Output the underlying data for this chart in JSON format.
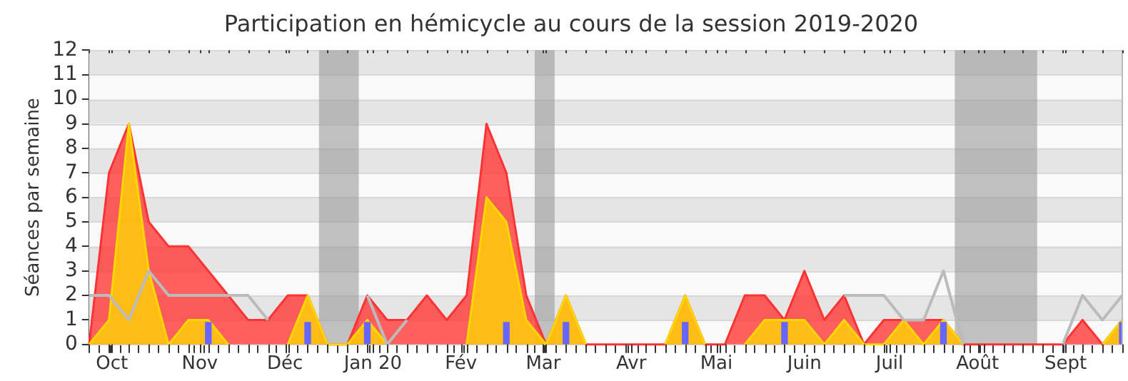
{
  "chart_data": {
    "type": "area",
    "title": "Participation en hémicycle au cours de la session 2019-2020",
    "ylabel": "Séances par semaine",
    "x": [
      "2019-09-23",
      "2019-09-30",
      "2019-10-07",
      "2019-10-14",
      "2019-10-21",
      "2019-10-28",
      "2019-11-04",
      "2019-11-11",
      "2019-11-18",
      "2019-11-25",
      "2019-12-02",
      "2019-12-09",
      "2019-12-16",
      "2019-12-23",
      "2019-12-30",
      "2020-01-06",
      "2020-01-13",
      "2020-01-20",
      "2020-01-27",
      "2020-02-03",
      "2020-02-10",
      "2020-02-17",
      "2020-02-24",
      "2020-03-02",
      "2020-03-09",
      "2020-03-16",
      "2020-03-23",
      "2020-03-30",
      "2020-04-06",
      "2020-04-13",
      "2020-04-20",
      "2020-04-27",
      "2020-05-04",
      "2020-05-11",
      "2020-05-18",
      "2020-05-25",
      "2020-06-01",
      "2020-06-08",
      "2020-06-15",
      "2020-06-22",
      "2020-06-29",
      "2020-07-06",
      "2020-07-13",
      "2020-07-20",
      "2020-07-27",
      "2020-08-03",
      "2020-08-10",
      "2020-08-17",
      "2020-08-24",
      "2020-08-31",
      "2020-09-07",
      "2020-09-14",
      "2020-09-21"
    ],
    "series": [
      {
        "color": "#ff3333",
        "values": [
          0,
          7,
          9,
          5,
          4,
          4,
          3,
          2,
          1,
          1,
          2,
          2,
          0,
          0,
          2,
          1,
          1,
          2,
          1,
          2,
          9,
          7,
          2,
          0,
          2,
          0,
          0,
          0,
          0,
          0,
          2,
          0,
          0,
          2,
          2,
          1,
          3,
          1,
          2,
          0,
          1,
          1,
          1,
          1,
          0,
          0,
          0,
          0,
          0,
          0,
          1,
          0,
          1
        ]
      },
      {
        "color": "#ffd700",
        "values": [
          0,
          1,
          9,
          3,
          0,
          1,
          1,
          0,
          null,
          null,
          0,
          2,
          0,
          0,
          1,
          0,
          null,
          null,
          null,
          0,
          6,
          5,
          1,
          0,
          2,
          0,
          null,
          null,
          null,
          0,
          2,
          0,
          null,
          0,
          1,
          1,
          1,
          0,
          1,
          0,
          0,
          1,
          0,
          1,
          0,
          null,
          null,
          null,
          null,
          null,
          null,
          0,
          1
        ]
      },
      {
        "type": "line",
        "color": "#bbbbbb",
        "values": [
          2,
          2,
          1,
          3,
          2,
          2,
          2,
          2,
          2,
          1,
          null,
          null,
          null,
          null,
          2,
          0,
          1,
          null,
          null,
          null,
          null,
          null,
          null,
          null,
          null,
          null,
          null,
          null,
          null,
          null,
          null,
          null,
          null,
          null,
          null,
          null,
          null,
          null,
          2,
          2,
          2,
          1,
          1,
          3,
          0,
          null,
          null,
          null,
          null,
          0,
          2,
          1,
          2
        ]
      },
      {
        "type": "bar",
        "color": "#6666ff",
        "values": [
          null,
          null,
          null,
          null,
          null,
          null,
          0.9,
          null,
          null,
          null,
          null,
          0.9,
          null,
          null,
          0.9,
          null,
          null,
          null,
          null,
          null,
          null,
          0.9,
          null,
          null,
          0.9,
          null,
          null,
          null,
          null,
          null,
          0.9,
          null,
          null,
          null,
          null,
          0.9,
          null,
          null,
          null,
          null,
          null,
          null,
          null,
          0.9,
          null,
          null,
          null,
          null,
          null,
          null,
          null,
          null,
          0.9
        ]
      }
    ],
    "xlim": [
      "2019-09-23",
      "2020-09-21"
    ],
    "xticks": [
      {
        "value": "2019-09-23",
        "label": null
      },
      {
        "value": "2019-09-30",
        "label": null
      },
      {
        "value": "2019-10-01",
        "label": "Oct"
      },
      {
        "value": "2019-10-07",
        "label": null
      },
      {
        "value": "2019-10-14",
        "label": null
      },
      {
        "value": "2019-10-21",
        "label": null
      },
      {
        "value": "2019-10-28",
        "label": null
      },
      {
        "value": "2019-11-01",
        "label": "Nov"
      },
      {
        "value": "2019-11-04",
        "label": null
      },
      {
        "value": "2019-11-11",
        "label": null
      },
      {
        "value": "2019-11-18",
        "label": null
      },
      {
        "value": "2019-11-25",
        "label": null
      },
      {
        "value": "2019-12-01",
        "label": "Déc"
      },
      {
        "value": "2019-12-02",
        "label": null
      },
      {
        "value": "2019-12-09",
        "label": null
      },
      {
        "value": "2019-12-16",
        "label": null
      },
      {
        "value": "2019-12-23",
        "label": null
      },
      {
        "value": "2019-12-30",
        "label": null
      },
      {
        "value": "2020-01-01",
        "label": "Jan 20"
      },
      {
        "value": "2020-01-06",
        "label": null
      },
      {
        "value": "2020-01-13",
        "label": null
      },
      {
        "value": "2020-01-20",
        "label": null
      },
      {
        "value": "2020-01-27",
        "label": null
      },
      {
        "value": "2020-02-01",
        "label": "Fév"
      },
      {
        "value": "2020-02-03",
        "label": null
      },
      {
        "value": "2020-02-10",
        "label": null
      },
      {
        "value": "2020-02-17",
        "label": null
      },
      {
        "value": "2020-02-24",
        "label": null
      },
      {
        "value": "2020-03-01",
        "label": "Mar"
      },
      {
        "value": "2020-03-02",
        "label": null
      },
      {
        "value": "2020-03-09",
        "label": null
      },
      {
        "value": "2020-03-16",
        "label": null
      },
      {
        "value": "2020-03-23",
        "label": null
      },
      {
        "value": "2020-03-30",
        "label": null
      },
      {
        "value": "2020-04-01",
        "label": "Avr"
      },
      {
        "value": "2020-04-06",
        "label": null
      },
      {
        "value": "2020-04-13",
        "label": null
      },
      {
        "value": "2020-04-20",
        "label": null
      },
      {
        "value": "2020-04-27",
        "label": null
      },
      {
        "value": "2020-05-01",
        "label": "Mai"
      },
      {
        "value": "2020-05-04",
        "label": null
      },
      {
        "value": "2020-05-11",
        "label": null
      },
      {
        "value": "2020-05-18",
        "label": null
      },
      {
        "value": "2020-05-25",
        "label": null
      },
      {
        "value": "2020-06-01",
        "label": "Juin"
      },
      {
        "value": "2020-06-08",
        "label": null
      },
      {
        "value": "2020-06-15",
        "label": null
      },
      {
        "value": "2020-06-22",
        "label": null
      },
      {
        "value": "2020-06-29",
        "label": null
      },
      {
        "value": "2020-07-01",
        "label": "Juil"
      },
      {
        "value": "2020-07-06",
        "label": null
      },
      {
        "value": "2020-07-13",
        "label": null
      },
      {
        "value": "2020-07-20",
        "label": null
      },
      {
        "value": "2020-07-27",
        "label": null
      },
      {
        "value": "2020-08-01",
        "label": "Août"
      },
      {
        "value": "2020-08-03",
        "label": null
      },
      {
        "value": "2020-08-10",
        "label": null
      },
      {
        "value": "2020-08-17",
        "label": null
      },
      {
        "value": "2020-08-24",
        "label": null
      },
      {
        "value": "2020-08-31",
        "label": null
      },
      {
        "value": "2020-09-01",
        "label": "Sept"
      },
      {
        "value": "2020-09-07",
        "label": null
      },
      {
        "value": "2020-09-14",
        "label": null
      },
      {
        "value": "2020-09-21",
        "label": null
      }
    ],
    "ylim": [
      0,
      12
    ],
    "yticks": [
      0,
      1,
      2,
      3,
      4,
      5,
      6,
      7,
      8,
      9,
      10,
      11,
      12
    ],
    "grid": "y",
    "bands": [
      {
        "axis": "x",
        "from": "2019-12-13",
        "to": "2019-12-27",
        "color": "#999999"
      },
      {
        "axis": "x",
        "from": "2020-02-27",
        "to": "2020-03-05",
        "color": "#999999"
      },
      {
        "axis": "x",
        "from": "2020-07-24",
        "to": "2020-08-22",
        "color": "#999999"
      }
    ]
  }
}
